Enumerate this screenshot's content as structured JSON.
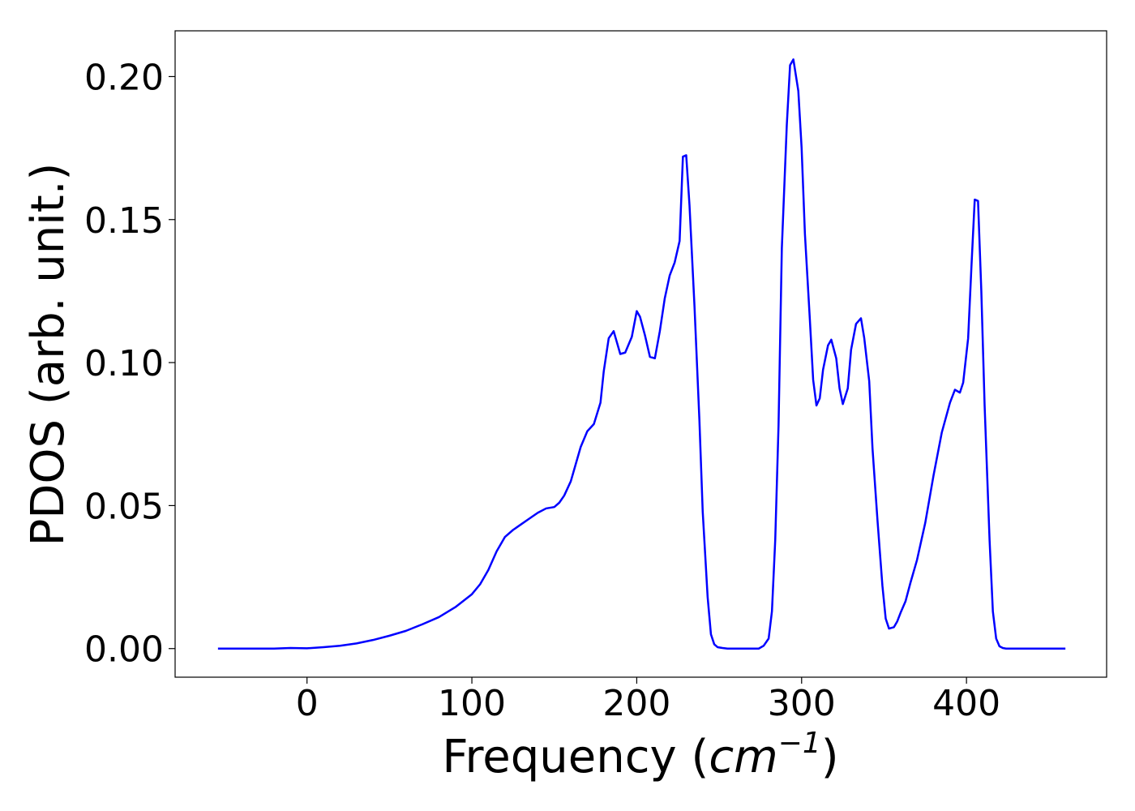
{
  "chart_data": {
    "type": "line",
    "title": "",
    "xlabel_prefix": "Frequency (",
    "xlabel_var": "cm",
    "xlabel_sup": "−1",
    "xlabel_suffix": ")",
    "ylabel": "PDOS (arb. unit.)",
    "xlim": [
      -80,
      485
    ],
    "ylim": [
      -0.01,
      0.216
    ],
    "xticks": [
      0,
      100,
      200,
      300,
      400
    ],
    "xtick_labels": [
      "0",
      "100",
      "200",
      "300",
      "400"
    ],
    "yticks": [
      0.0,
      0.05,
      0.1,
      0.15,
      0.2
    ],
    "ytick_labels": [
      "0.00",
      "0.05",
      "0.10",
      "0.15",
      "0.20"
    ],
    "grid": false,
    "line_color": "#0000ff",
    "series": [
      {
        "x": [
          -54,
          -20,
          -10,
          0,
          10,
          20,
          30,
          40,
          50,
          60,
          70,
          80,
          90,
          100,
          105,
          110,
          115,
          120,
          125,
          130,
          135,
          140,
          145,
          150,
          153,
          156,
          160,
          163,
          166,
          170,
          174,
          178,
          180,
          183,
          186,
          190,
          193,
          197,
          200,
          202,
          205,
          208,
          211,
          214,
          217,
          220,
          223,
          226,
          228,
          230,
          232,
          235,
          238,
          240,
          243,
          245,
          247,
          249,
          252,
          255,
          260,
          265,
          270,
          274,
          277,
          280,
          282,
          284,
          286,
          288,
          291,
          293,
          295,
          298,
          300,
          302,
          305,
          307,
          309,
          311,
          313,
          316,
          318,
          321,
          323,
          325,
          328,
          330,
          333,
          336,
          338,
          341,
          343,
          346,
          349,
          351,
          353,
          356,
          358,
          360,
          363,
          366,
          370,
          375,
          380,
          385,
          390,
          393,
          396,
          398,
          401,
          403,
          405,
          407,
          409,
          411,
          414,
          416,
          418,
          420,
          422,
          424,
          426,
          428,
          430,
          433,
          436,
          440,
          450,
          460
        ],
        "y": [
          0.0,
          0.0,
          0.0002,
          0.0001,
          0.0005,
          0.001,
          0.0018,
          0.003,
          0.0045,
          0.0062,
          0.0085,
          0.011,
          0.0145,
          0.019,
          0.0225,
          0.0275,
          0.034,
          0.039,
          0.0415,
          0.0435,
          0.0455,
          0.0475,
          0.049,
          0.0495,
          0.051,
          0.0535,
          0.0585,
          0.0645,
          0.0705,
          0.076,
          0.0785,
          0.086,
          0.097,
          0.1085,
          0.111,
          0.103,
          0.1035,
          0.109,
          0.118,
          0.116,
          0.1095,
          0.102,
          0.1015,
          0.111,
          0.1225,
          0.1305,
          0.135,
          0.1425,
          0.172,
          0.1725,
          0.155,
          0.12,
          0.08,
          0.048,
          0.018,
          0.005,
          0.0015,
          0.0005,
          0.0002,
          0.0,
          0.0,
          0.0,
          0.0,
          0.0,
          0.001,
          0.0035,
          0.013,
          0.038,
          0.078,
          0.14,
          0.183,
          0.204,
          0.206,
          0.195,
          0.175,
          0.145,
          0.115,
          0.094,
          0.085,
          0.0875,
          0.0975,
          0.106,
          0.108,
          0.1015,
          0.091,
          0.0855,
          0.091,
          0.1045,
          0.1135,
          0.1155,
          0.1085,
          0.0935,
          0.07,
          0.045,
          0.022,
          0.0105,
          0.007,
          0.0075,
          0.0095,
          0.0125,
          0.0165,
          0.023,
          0.031,
          0.044,
          0.0605,
          0.0755,
          0.086,
          0.0905,
          0.0895,
          0.093,
          0.1085,
          0.1335,
          0.157,
          0.1565,
          0.125,
          0.085,
          0.038,
          0.013,
          0.0035,
          0.0008,
          0.0002,
          0.0,
          0.0,
          0.0,
          0.0,
          0.0,
          0.0,
          0.0,
          0.0,
          0.0
        ]
      }
    ]
  }
}
